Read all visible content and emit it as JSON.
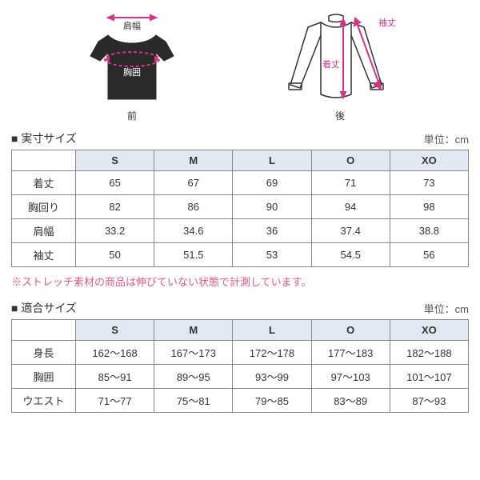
{
  "colors": {
    "accent": "#d63384",
    "header_bg": "#e2e8f2",
    "border": "#888888",
    "text": "#333333",
    "diagram_stroke": "#333333"
  },
  "diagrams": {
    "front": {
      "shoulder_label": "肩幅",
      "chest_label": "胸囲",
      "caption": "前"
    },
    "back": {
      "length_label": "着丈",
      "sleeve_label": "袖丈",
      "caption": "後"
    }
  },
  "section1": {
    "title": "■ 実寸サイズ",
    "unit": "単位：cm",
    "sizes": [
      "S",
      "M",
      "L",
      "O",
      "XO"
    ],
    "rows": [
      {
        "label": "着丈",
        "values": [
          "65",
          "67",
          "69",
          "71",
          "73"
        ]
      },
      {
        "label": "胸回り",
        "values": [
          "82",
          "86",
          "90",
          "94",
          "98"
        ]
      },
      {
        "label": "肩幅",
        "values": [
          "33.2",
          "34.6",
          "36",
          "37.4",
          "38.8"
        ]
      },
      {
        "label": "袖丈",
        "values": [
          "50",
          "51.5",
          "53",
          "54.5",
          "56"
        ]
      }
    ]
  },
  "note": "※ストレッチ素材の商品は伸びていない状態で計測しています。",
  "section2": {
    "title": "■ 適合サイズ",
    "unit": "単位：cm",
    "sizes": [
      "S",
      "M",
      "L",
      "O",
      "XO"
    ],
    "rows": [
      {
        "label": "身長",
        "values": [
          "162～168",
          "167～173",
          "172～178",
          "177～183",
          "182～188"
        ]
      },
      {
        "label": "胸囲",
        "values": [
          "85～91",
          "89～95",
          "93～99",
          "97～103",
          "101～107"
        ]
      },
      {
        "label": "ウエスト",
        "values": [
          "71～77",
          "75～81",
          "79～85",
          "83～89",
          "87～93"
        ]
      }
    ]
  }
}
